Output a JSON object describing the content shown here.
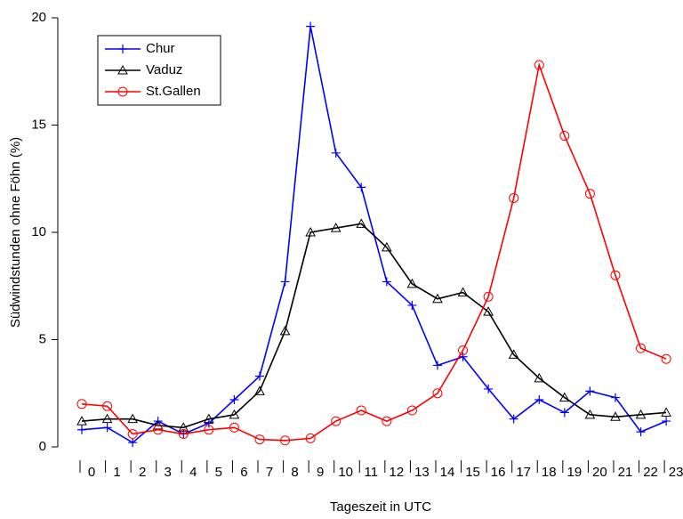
{
  "chart_data": {
    "type": "line",
    "x_label": "Tageszeit in UTC",
    "y_label": "Südwindstunden ohne Föhn (%)",
    "categories": [
      "0",
      "1",
      "2",
      "3",
      "4",
      "5",
      "6",
      "7",
      "8",
      "9",
      "10",
      "11",
      "12",
      "13",
      "14",
      "15",
      "16",
      "17",
      "18",
      "19",
      "20",
      "21",
      "22",
      "23"
    ],
    "series": [
      {
        "name": "Chur",
        "color": "#0000ff",
        "marker": "plus",
        "values": [
          0.8,
          0.9,
          0.2,
          1.2,
          0.6,
          1.1,
          2.2,
          3.3,
          7.7,
          19.6,
          13.7,
          12.1,
          7.7,
          6.6,
          3.8,
          4.2,
          2.7,
          1.3,
          2.2,
          1.6,
          2.6,
          2.3,
          0.7,
          1.2
        ]
      },
      {
        "name": "Vaduz",
        "color": "#000000",
        "marker": "triangle",
        "values": [
          1.2,
          1.3,
          1.3,
          1.0,
          0.9,
          1.3,
          1.5,
          2.6,
          5.4,
          10.0,
          10.2,
          10.4,
          9.3,
          7.6,
          6.9,
          7.2,
          6.3,
          4.3,
          3.2,
          2.3,
          1.5,
          1.4,
          1.5,
          1.6
        ]
      },
      {
        "name": "St.Gallen",
        "color": "#ff0000",
        "marker": "circle",
        "values": [
          2.0,
          1.9,
          0.6,
          0.8,
          0.6,
          0.8,
          0.9,
          0.35,
          0.3,
          0.4,
          1.2,
          1.7,
          1.2,
          1.7,
          2.5,
          4.5,
          7.0,
          11.6,
          17.8,
          14.5,
          11.8,
          8.0,
          4.6,
          4.1
        ]
      }
    ],
    "ylim": [
      0,
      20
    ],
    "yticks": [
      0,
      5,
      10,
      15,
      20
    ],
    "legend": "upper left",
    "grid": false
  }
}
